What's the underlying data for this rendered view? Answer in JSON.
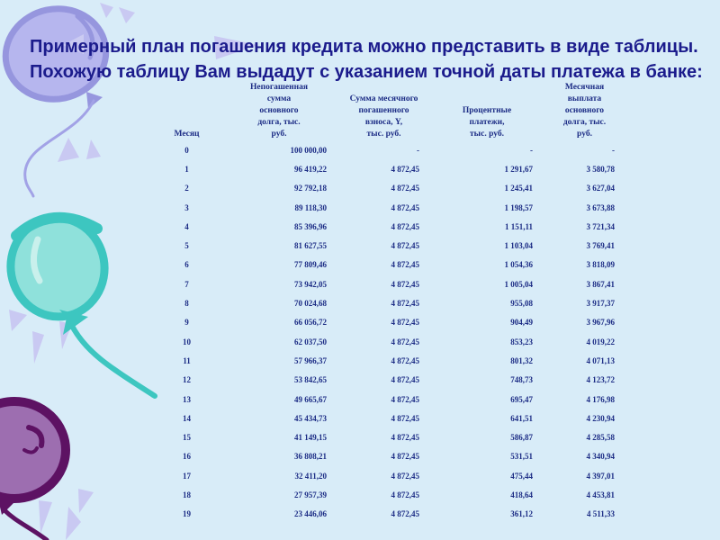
{
  "slide": {
    "title": "Примерный план погашения кредита можно представить в виде таблицы.\nПохожую таблицу Вам выдадут с указанием точной даты платежа в банке:"
  },
  "table": {
    "columns": [
      "Месяц",
      "Непогашенная\nсумма\nосновного\nдолга, тыс.\nруб.",
      "Сумма месячного\nпогашенного\nвзноса, Y,\nтыс. руб.",
      "Процентные\nплатежи,\nтыс. руб.",
      "Месячная\nвыплата\nосновного\nдолга, тыс.\nруб."
    ],
    "rows": [
      [
        "0",
        "100 000,00",
        "-",
        "-",
        "-"
      ],
      [
        "1",
        "96 419,22",
        "4 872,45",
        "1 291,67",
        "3 580,78"
      ],
      [
        "2",
        "92 792,18",
        "4 872,45",
        "1 245,41",
        "3 627,04"
      ],
      [
        "3",
        "89 118,30",
        "4 872,45",
        "1 198,57",
        "3 673,88"
      ],
      [
        "4",
        "85 396,96",
        "4 872,45",
        "1 151,11",
        "3 721,34"
      ],
      [
        "5",
        "81 627,55",
        "4 872,45",
        "1 103,04",
        "3 769,41"
      ],
      [
        "6",
        "77 809,46",
        "4 872,45",
        "1 054,36",
        "3 818,09"
      ],
      [
        "7",
        "73 942,05",
        "4 872,45",
        "1 005,04",
        "3 867,41"
      ],
      [
        "8",
        "70 024,68",
        "4 872,45",
        "955,08",
        "3 917,37"
      ],
      [
        "9",
        "66 056,72",
        "4 872,45",
        "904,49",
        "3 967,96"
      ],
      [
        "10",
        "62 037,50",
        "4 872,45",
        "853,23",
        "4 019,22"
      ],
      [
        "11",
        "57 966,37",
        "4 872,45",
        "801,32",
        "4 071,13"
      ],
      [
        "12",
        "53 842,65",
        "4 872,45",
        "748,73",
        "4 123,72"
      ],
      [
        "13",
        "49 665,67",
        "4 872,45",
        "695,47",
        "4 176,98"
      ],
      [
        "14",
        "45 434,73",
        "4 872,45",
        "641,51",
        "4 230,94"
      ],
      [
        "15",
        "41 149,15",
        "4 872,45",
        "586,87",
        "4 285,58"
      ],
      [
        "16",
        "36 808,21",
        "4 872,45",
        "531,51",
        "4 340,94"
      ],
      [
        "17",
        "32 411,20",
        "4 872,45",
        "475,44",
        "4 397,01"
      ],
      [
        "18",
        "27 957,39",
        "4 872,45",
        "418,64",
        "4 453,81"
      ],
      [
        "19",
        "23 446,06",
        "4 872,45",
        "361,12",
        "4 511,33"
      ]
    ]
  },
  "colors": {
    "bg": "#d8ecf8",
    "title-ink": "#1b1b8c",
    "table-ink": "#1c2c85",
    "lavender-fill": "#b6b6ee",
    "lavender-stroke": "#9696de",
    "sparkle": "#c9c9f2",
    "teal-fill": "#8fe1db",
    "teal-stroke": "#3dc6c0",
    "purple-fill": "#9d6eb0",
    "purple-stroke": "#5d1263"
  }
}
